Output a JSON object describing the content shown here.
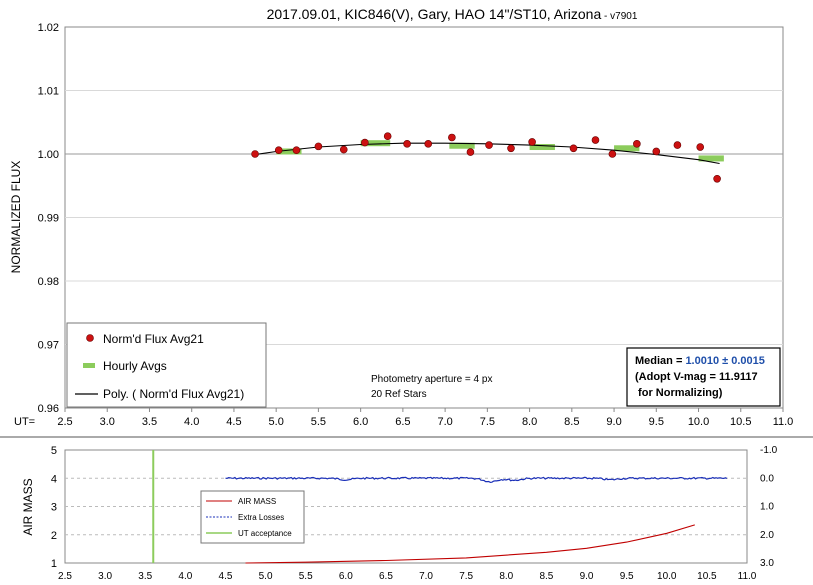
{
  "chart_data": [
    {
      "type": "scatter",
      "title_main": "2017.09.01, KIC846(V), Gary, HAO 14\"/ST10, Arizona",
      "title_suffix": " - v7901",
      "ylabel": "NORMALIZED FLUX",
      "xaxis_label": "UT=",
      "xlim": [
        2.5,
        11.0
      ],
      "ylim": [
        0.96,
        1.02
      ],
      "x_ticks": [
        "2.5",
        "3.0",
        "3.5",
        "4.0",
        "4.5",
        "5.0",
        "5.5",
        "6.0",
        "6.5",
        "7.0",
        "7.5",
        "8.0",
        "8.5",
        "9.0",
        "9.5",
        "10.0",
        "10.5",
        "11.0"
      ],
      "y_ticks": [
        "0.96",
        "0.97",
        "0.98",
        "0.99",
        "1.00",
        "1.01",
        "1.02"
      ],
      "reference_line": 1.0,
      "series": [
        {
          "name": "Norm'd Flux Avg21",
          "color": "#cc1111",
          "points": [
            [
              4.75,
              1.0
            ],
            [
              5.03,
              1.0006
            ],
            [
              5.24,
              1.0006
            ],
            [
              5.5,
              1.0012
            ],
            [
              5.8,
              1.0007
            ],
            [
              6.05,
              1.0018
            ],
            [
              6.32,
              1.0028
            ],
            [
              6.55,
              1.0016
            ],
            [
              6.8,
              1.0016
            ],
            [
              7.08,
              1.0026
            ],
            [
              7.3,
              1.0003
            ],
            [
              7.52,
              1.0014
            ],
            [
              7.78,
              1.0009
            ],
            [
              8.03,
              1.0019
            ],
            [
              8.52,
              1.0009
            ],
            [
              8.78,
              1.0022
            ],
            [
              8.98,
              1.0
            ],
            [
              9.27,
              1.0016
            ],
            [
              9.5,
              1.0004
            ],
            [
              9.75,
              1.0014
            ],
            [
              10.02,
              1.0011
            ],
            [
              10.22,
              0.9961
            ]
          ]
        },
        {
          "name": "Hourly Avgs",
          "color": "#8ccc5c",
          "segments": [
            [
              5.0,
              5.3,
              1.0004
            ],
            [
              6.0,
              6.35,
              1.0017
            ],
            [
              7.05,
              7.35,
              1.0013
            ],
            [
              8.0,
              8.3,
              1.0011
            ],
            [
              9.0,
              9.3,
              1.0009
            ],
            [
              10.0,
              10.3,
              0.9993
            ]
          ]
        },
        {
          "name": "Poly. ( Norm'd Flux Avg21)",
          "color": "#000000",
          "curve": [
            [
              4.75,
              0.9999
            ],
            [
              5.0,
              1.0004
            ],
            [
              5.5,
              1.0011
            ],
            [
              6.0,
              1.0015
            ],
            [
              6.5,
              1.0017
            ],
            [
              7.0,
              1.0017
            ],
            [
              7.5,
              1.0016
            ],
            [
              8.0,
              1.0014
            ],
            [
              8.5,
              1.0011
            ],
            [
              9.0,
              1.0006
            ],
            [
              9.5,
              0.9999
            ],
            [
              10.0,
              0.9991
            ],
            [
              10.25,
              0.9985
            ]
          ]
        }
      ],
      "annotation": [
        "Photometry aperture = 4 px",
        "20 Ref Stars"
      ],
      "median_box": {
        "label": "Median = ",
        "value": "1.0010 ± 0.0015",
        "value_color": "#1f4faa",
        "line2": "(Adopt V-mag = 11.9117",
        "line3": " for Normalizing)"
      },
      "legend_position": "bottom-left"
    },
    {
      "type": "line",
      "ylabel": "AIR MASS",
      "xlim": [
        2.5,
        11.0
      ],
      "ylim": [
        1,
        5
      ],
      "y2lim": [
        -1.0,
        3.0
      ],
      "x_ticks": [
        "2.5",
        "3.0",
        "3.5",
        "4.0",
        "4.5",
        "5.0",
        "5.5",
        "6.0",
        "6.5",
        "7.0",
        "7.5",
        "8.0",
        "8.5",
        "9.0",
        "9.5",
        "10.0",
        "10.5",
        "11.0"
      ],
      "y_ticks": [
        "1",
        "2",
        "3",
        "4",
        "5"
      ],
      "y2_ticks": [
        "-1.0",
        "0.0",
        "1.0",
        "2.0",
        "3.0"
      ],
      "series": [
        {
          "name": "AIR MASS",
          "color": "#c00000",
          "points": [
            [
              4.75,
              1.0
            ],
            [
              5.5,
              1.03
            ],
            [
              6.5,
              1.09
            ],
            [
              7.5,
              1.18
            ],
            [
              8.5,
              1.38
            ],
            [
              9.0,
              1.52
            ],
            [
              9.5,
              1.74
            ],
            [
              10.0,
              2.05
            ],
            [
              10.35,
              2.35
            ]
          ]
        },
        {
          "name": "Extra Losses",
          "color": "#1a2fb8",
          "x_range": [
            4.5,
            10.75
          ],
          "base": 0.0,
          "dips": [
            [
              7.8,
              0.12
            ],
            [
              8.1,
              0.07
            ],
            [
              6.0,
              0.05
            ],
            [
              9.3,
              0.05
            ]
          ]
        },
        {
          "name": "UT acceptance",
          "color": "#8ccc5c",
          "x": 3.6
        }
      ],
      "legend_position": "center-left"
    }
  ]
}
